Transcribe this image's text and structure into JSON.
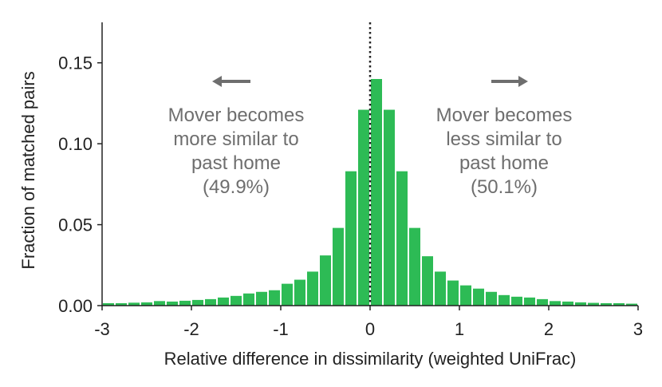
{
  "chart_data": {
    "type": "bar",
    "xlabel": "Relative difference in dissimilarity (weighted UniFrac)",
    "ylabel": "Fraction of matched pairs",
    "xlim": [
      -3,
      3
    ],
    "ylim": [
      0,
      0.175
    ],
    "x_ticks": [
      -3,
      -2,
      -1,
      0,
      1,
      2,
      3
    ],
    "y_ticks": [
      0.0,
      0.05,
      0.1,
      0.15
    ],
    "x_tick_labels": [
      "-3",
      "-2",
      "-1",
      "0",
      "1",
      "2",
      "3"
    ],
    "y_tick_labels": [
      "0.00",
      "0.05",
      "0.10",
      "0.15"
    ],
    "bin_width": 0.14286,
    "bin_start": -3,
    "values": [
      0.0015,
      0.0015,
      0.0018,
      0.002,
      0.0028,
      0.0025,
      0.003,
      0.0035,
      0.004,
      0.005,
      0.006,
      0.0075,
      0.0085,
      0.0095,
      0.0135,
      0.016,
      0.021,
      0.031,
      0.048,
      0.083,
      0.121,
      0.14,
      0.121,
      0.083,
      0.048,
      0.0305,
      0.021,
      0.0155,
      0.0125,
      0.0105,
      0.0085,
      0.0065,
      0.0055,
      0.005,
      0.004,
      0.0028,
      0.0025,
      0.002,
      0.0017,
      0.0015,
      0.0015,
      0.0012,
      0.001
    ],
    "bar_color": "#2dbb55",
    "reference_line": {
      "x": 0,
      "style": "dotted",
      "color": "#222222"
    },
    "annotations": {
      "left": {
        "lines": [
          "Mover becomes",
          "more similar to",
          "past home",
          "(49.9%)"
        ],
        "arrow": "left"
      },
      "right": {
        "lines": [
          "Mover becomes",
          "less similar to",
          "past home",
          "(50.1%)"
        ],
        "arrow": "right"
      }
    },
    "annotation_color": "#6e6e6e",
    "grid": false
  }
}
